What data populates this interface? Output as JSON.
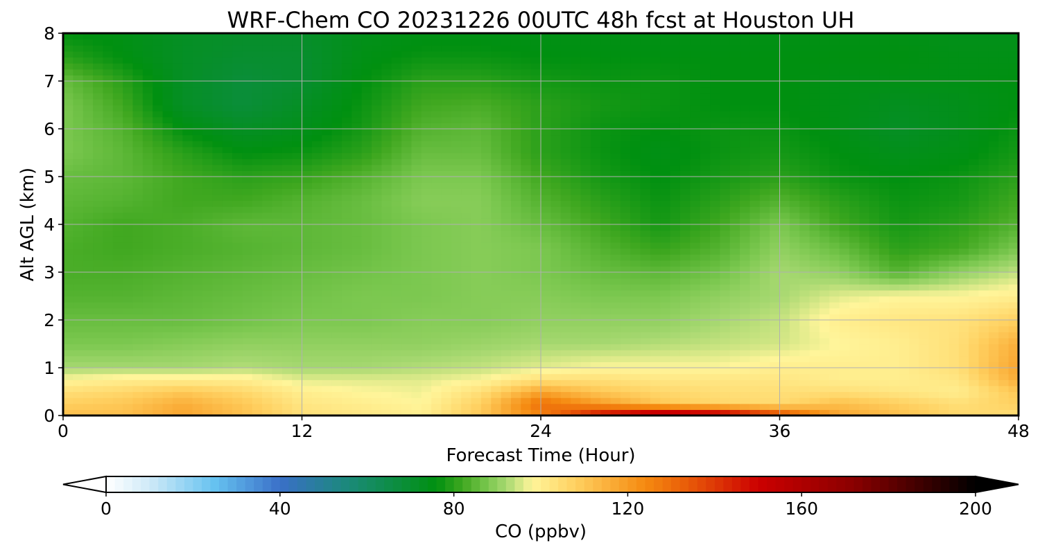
{
  "chart_data": {
    "type": "heatmap",
    "title": "WRF-Chem CO  20231226 00UTC 48h fcst at Houston UH",
    "xlabel": "Forecast Time (Hour)",
    "ylabel": "Alt AGL (km)",
    "xlim": [
      0,
      48
    ],
    "ylim": [
      0,
      8
    ],
    "xticks": [
      0,
      12,
      24,
      36,
      48
    ],
    "yticks": [
      0,
      1,
      2,
      3,
      4,
      5,
      6,
      7,
      8
    ],
    "grid": true,
    "x": [
      0,
      3,
      6,
      9,
      12,
      15,
      18,
      21,
      24,
      27,
      30,
      33,
      36,
      39,
      42,
      45,
      48
    ],
    "y": [
      0,
      0.25,
      0.5,
      0.75,
      1,
      1.5,
      2,
      2.5,
      3,
      3.5,
      4,
      4.5,
      5,
      5.5,
      6,
      6.5,
      7,
      7.5,
      8
    ],
    "values": [
      [
        112,
        112,
        118,
        112,
        104,
        102,
        100,
        110,
        125,
        150,
        165,
        160,
        140,
        118,
        112,
        106,
        104
      ],
      [
        108,
        110,
        116,
        110,
        102,
        100,
        98,
        108,
        130,
        120,
        110,
        106,
        105,
        112,
        108,
        104,
        108
      ],
      [
        104,
        106,
        110,
        106,
        100,
        98,
        97,
        104,
        118,
        110,
        106,
        104,
        104,
        104,
        102,
        100,
        110
      ],
      [
        98,
        100,
        100,
        100,
        96,
        96,
        96,
        98,
        104,
        104,
        102,
        102,
        102,
        100,
        100,
        102,
        116
      ],
      [
        92,
        92,
        92,
        93,
        92,
        92,
        93,
        94,
        96,
        98,
        98,
        98,
        100,
        100,
        100,
        104,
        118
      ],
      [
        88,
        88,
        89,
        90,
        90,
        90,
        90,
        91,
        92,
        92,
        93,
        94,
        95,
        98,
        100,
        104,
        116
      ],
      [
        86,
        86,
        86,
        87,
        88,
        88,
        89,
        89,
        90,
        90,
        90,
        92,
        94,
        100,
        102,
        103,
        108
      ],
      [
        84,
        84,
        85,
        86,
        87,
        88,
        88,
        89,
        89,
        88,
        88,
        90,
        92,
        96,
        98,
        98,
        100
      ],
      [
        83,
        83,
        84,
        85,
        86,
        87,
        88,
        89,
        88,
        86,
        85,
        87,
        92,
        90,
        84,
        90,
        94
      ],
      [
        83,
        82,
        83,
        84,
        85,
        86,
        88,
        89,
        88,
        84,
        81,
        84,
        90,
        86,
        80,
        82,
        88
      ],
      [
        84,
        82,
        83,
        85,
        85,
        86,
        88,
        89,
        86,
        82,
        78,
        82,
        88,
        82,
        78,
        80,
        84
      ],
      [
        85,
        84,
        82,
        82,
        84,
        86,
        89,
        89,
        84,
        80,
        77,
        80,
        84,
        80,
        77,
        78,
        82
      ],
      [
        86,
        85,
        82,
        80,
        81,
        84,
        88,
        88,
        82,
        78,
        76,
        78,
        80,
        77,
        76,
        77,
        80
      ],
      [
        88,
        85,
        80,
        76,
        77,
        80,
        86,
        86,
        80,
        77,
        75,
        77,
        78,
        76,
        74,
        75,
        78
      ],
      [
        88,
        84,
        76,
        72,
        74,
        78,
        84,
        85,
        80,
        77,
        76,
        77,
        77,
        75,
        72,
        74,
        77
      ],
      [
        88,
        82,
        72,
        68,
        72,
        77,
        82,
        83,
        80,
        78,
        77,
        76,
        76,
        75,
        73,
        74,
        76
      ],
      [
        86,
        80,
        72,
        68,
        70,
        76,
        80,
        80,
        78,
        77,
        77,
        76,
        76,
        75,
        75,
        75,
        76
      ],
      [
        80,
        76,
        72,
        70,
        70,
        75,
        77,
        77,
        76,
        76,
        76,
        76,
        76,
        76,
        76,
        75,
        75
      ],
      [
        76,
        75,
        72,
        71,
        71,
        74,
        75,
        75,
        75,
        75,
        75,
        75,
        75,
        75,
        75,
        74,
        74
      ]
    ],
    "colorbar": {
      "label": "CO  (ppbv)",
      "min": 0,
      "max": 200,
      "ticks": [
        0,
        40,
        80,
        120,
        160,
        200
      ],
      "extend": "both"
    }
  },
  "colors": {
    "stops": [
      "#ffffff",
      "#cfeaf8",
      "#66c2f0",
      "#3a6fc8",
      "#1a8a78",
      "#009010",
      "#40a820",
      "#7cc850",
      "#a6d870",
      "#fff59a",
      "#ffd060",
      "#f58a10",
      "#e85a08",
      "#cc0000",
      "#8a0000",
      "#000000"
    ],
    "stop_values": [
      0,
      10,
      25,
      40,
      56,
      76,
      82,
      88,
      92,
      98,
      108,
      124,
      134,
      150,
      172,
      200
    ]
  }
}
